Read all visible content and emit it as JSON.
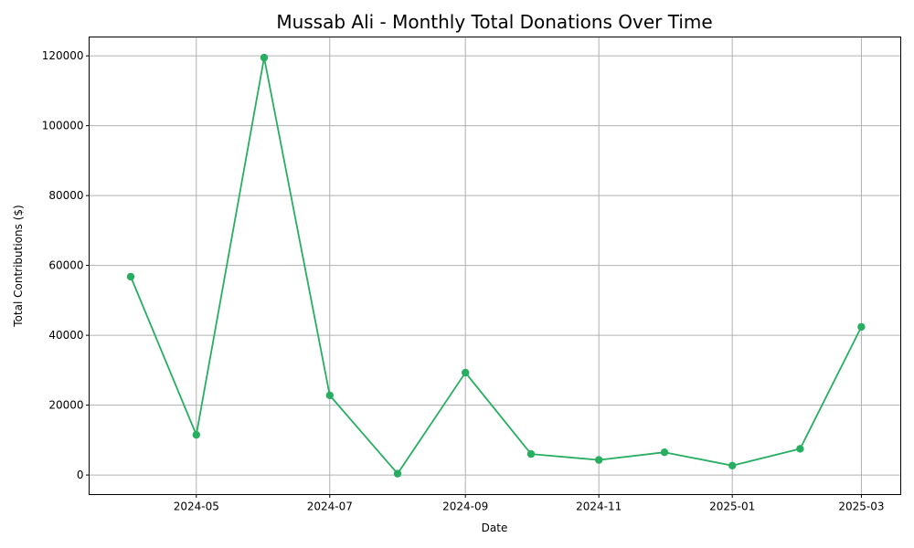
{
  "chart_data": {
    "type": "line",
    "title": "Mussab Ali - Monthly Total Donations Over Time",
    "xlabel": "Date",
    "ylabel": "Total Contributions ($)",
    "x": [
      "2024-04-01",
      "2024-05-01",
      "2024-06-01",
      "2024-07-01",
      "2024-08-01",
      "2024-09-01",
      "2024-10-01",
      "2024-11-01",
      "2024-12-01",
      "2025-01-01",
      "2025-02-01",
      "2025-03-01"
    ],
    "y": [
      56800,
      11500,
      119500,
      22800,
      400,
      29300,
      6000,
      4300,
      6500,
      2700,
      7500,
      42400
    ],
    "x_ticks": [
      "2024-05",
      "2024-07",
      "2024-09",
      "2024-11",
      "2025-01",
      "2025-03"
    ],
    "y_ticks": [
      "0",
      "20000",
      "40000",
      "60000",
      "80000",
      "100000",
      "120000"
    ],
    "xlim": [
      "2024-03-13",
      "2025-03-19"
    ],
    "ylim": [
      -5600,
      125400
    ],
    "grid": true,
    "series_color": "#27ae60",
    "grid_color": "#b0b0b0",
    "marker": "circle"
  }
}
